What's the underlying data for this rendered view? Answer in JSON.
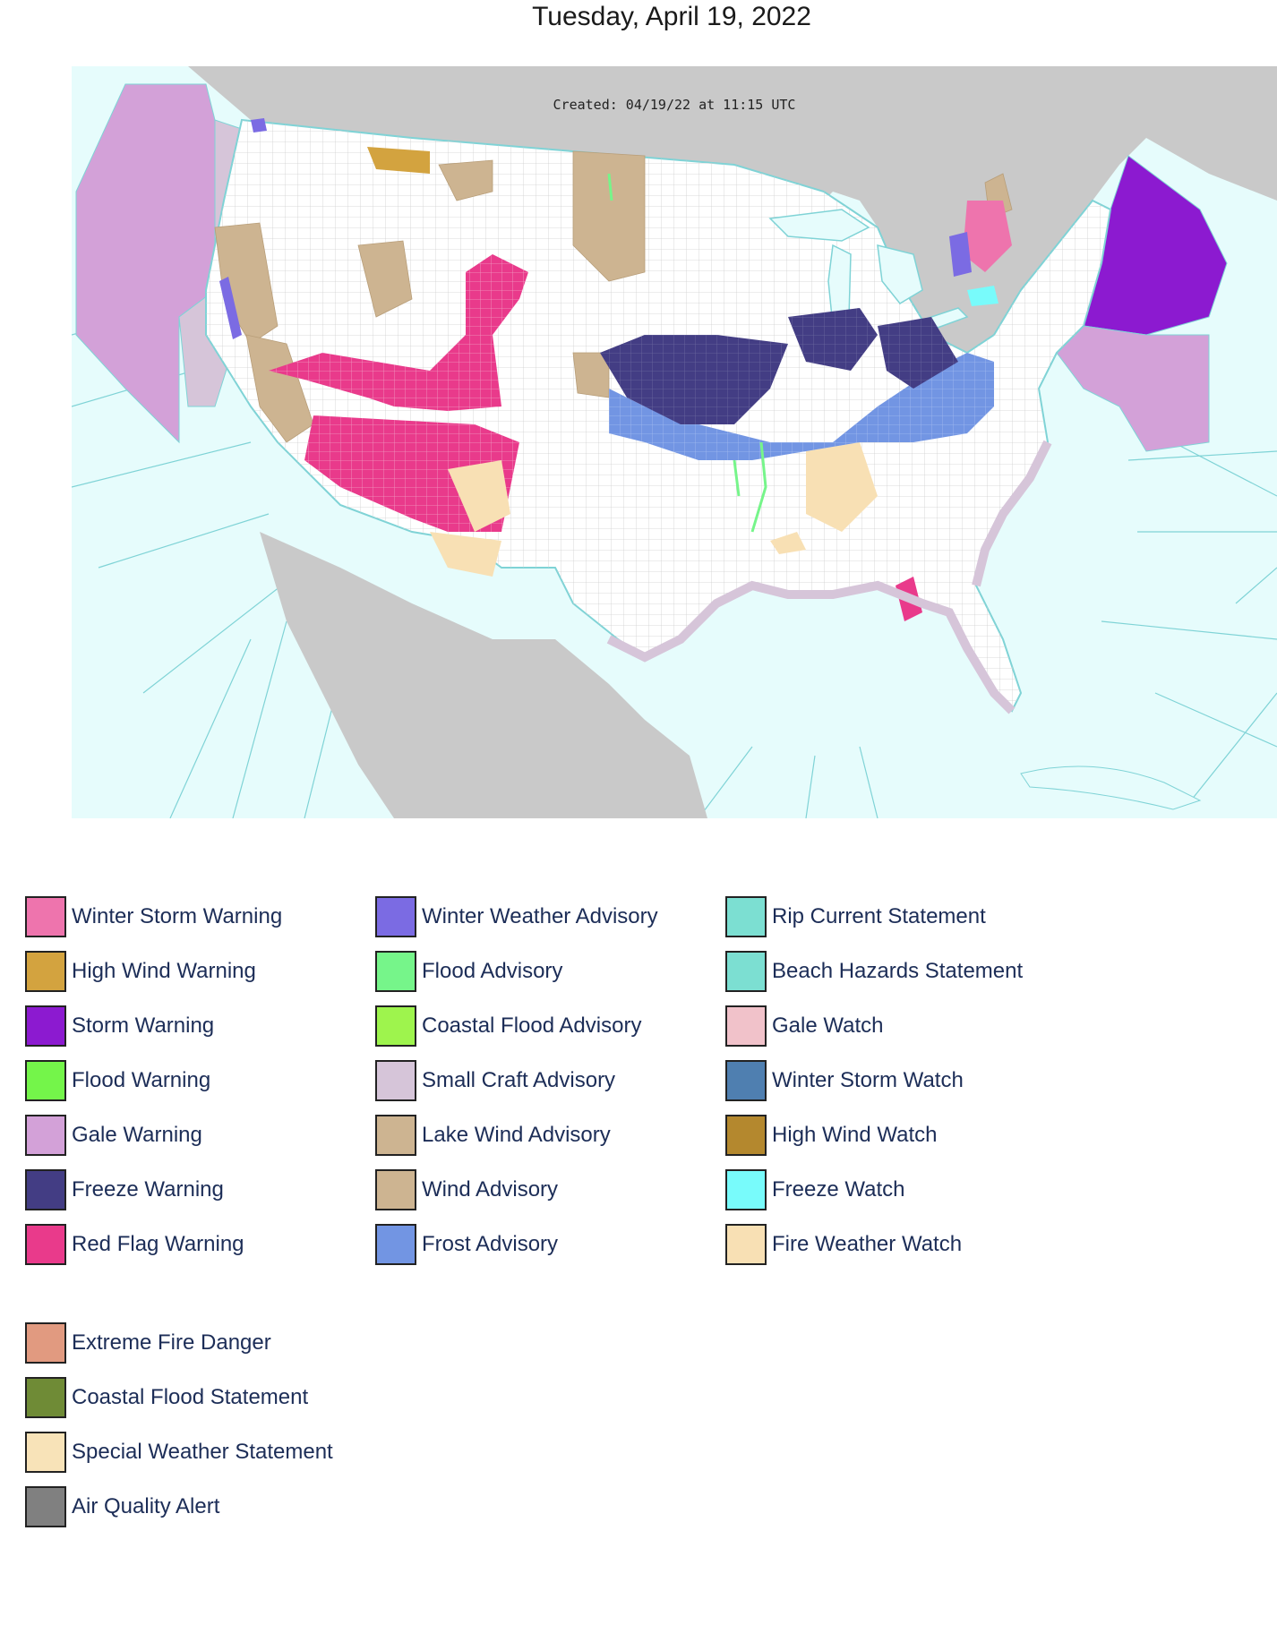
{
  "title": "Tuesday, April 19, 2022",
  "map": {
    "created_stamp": "Created: 04/19/22 at 11:15 UTC",
    "colors": {
      "ocean": "#e6fcfc",
      "land_outside": "#c9c9c9",
      "land_us": "#ffffff",
      "marine_line": "#7fd3d6",
      "county_line": "#c8c8c8"
    }
  },
  "legend": {
    "columns": [
      [
        {
          "label": "Winter Storm Warning",
          "color": "#ee74ad"
        },
        {
          "label": "High Wind Warning",
          "color": "#d3a33f"
        },
        {
          "label": "Storm Warning",
          "color": "#8c1ad0"
        },
        {
          "label": "Flood Warning",
          "color": "#74f54a"
        },
        {
          "label": "Gale Warning",
          "color": "#d3a1d8"
        },
        {
          "label": "Freeze Warning",
          "color": "#433d84"
        },
        {
          "label": "Red Flag Warning",
          "color": "#e93a8b"
        }
      ],
      [
        {
          "label": "Winter Weather Advisory",
          "color": "#7b6be3"
        },
        {
          "label": "Flood Advisory",
          "color": "#76f58a"
        },
        {
          "label": "Coastal Flood Advisory",
          "color": "#9ef44d"
        },
        {
          "label": "Small Craft Advisory",
          "color": "#d6c5d9"
        },
        {
          "label": "Lake Wind Advisory",
          "color": "#cdb491"
        },
        {
          "label": "Wind Advisory",
          "color": "#cdb491"
        },
        {
          "label": "Frost Advisory",
          "color": "#7295e3"
        }
      ],
      [
        {
          "label": "Rip Current Statement",
          "color": "#7cdfd2"
        },
        {
          "label": "Beach Hazards Statement",
          "color": "#7cdfd2"
        },
        {
          "label": "Gale Watch",
          "color": "#f1c2ca"
        },
        {
          "label": "Winter Storm Watch",
          "color": "#4f7fb0"
        },
        {
          "label": "High Wind Watch",
          "color": "#b4882e"
        },
        {
          "label": "Freeze Watch",
          "color": "#78fbfb"
        },
        {
          "label": "Fire Weather Watch",
          "color": "#f8e0b4"
        }
      ]
    ],
    "extra": [
      {
        "label": "Extreme Fire Danger",
        "color": "#e19a80"
      },
      {
        "label": "Coastal Flood Statement",
        "color": "#6f8b36"
      },
      {
        "label": "Special Weather Statement",
        "color": "#f8e3b8"
      },
      {
        "label": "Air Quality Alert",
        "color": "#808080"
      }
    ]
  }
}
